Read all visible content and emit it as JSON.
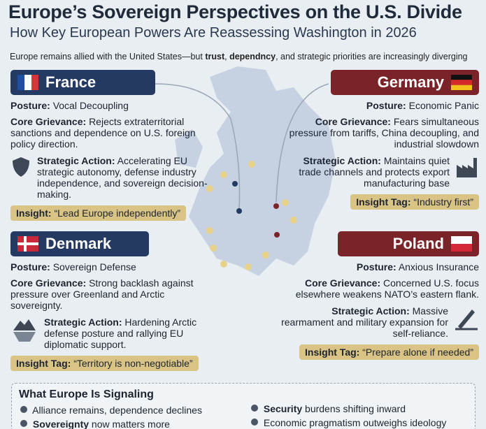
{
  "header": {
    "title": "Europe’s Sovereign Perspectives on the U.S. Divide",
    "subtitle": "How Key European Powers Are Reassessing Washington in 2026",
    "intro": [
      "Europe remains allied with the United States—but ",
      "trust",
      ", ",
      "dependncy",
      ", and strategic priorities are increasingly diverging"
    ]
  },
  "countries": [
    {
      "name": "France",
      "posture": {
        "label": "Posture:",
        "text": "Vocal Decoupling"
      },
      "grievance": {
        "label": "Core Grievance:",
        "text": "Rejects extraterritorial sanctions and dependence on U.S. foreign policy direction."
      },
      "action": {
        "label": "Strategic Action:",
        "text": "Accelerating EU strategic autonomy, defense industry independence, and sovereign decision-making."
      },
      "insight": {
        "label": "Insight:",
        "text": "“Lead Europe independently”"
      }
    },
    {
      "name": "Germany",
      "posture": {
        "label": "Posture:",
        "text": "Economic Panic"
      },
      "grievance": {
        "label": "Core Grievance:",
        "text": "Fears simultaneous pressure from tariffs, China decoupling, and industrial slowdown"
      },
      "action": {
        "label": "Strategic Action:",
        "text": "Maintains quiet trade channels and protects export manufacturing base"
      },
      "insight": {
        "label": "Insight Tag:",
        "text": "“Industry first”"
      }
    },
    {
      "name": "Denmark",
      "posture": {
        "label": "Posture:",
        "text": "Sovereign Defense"
      },
      "grievance": {
        "label": "Core Grievance:",
        "text": "Strong backlash against pressure over Greenland and Arctic sovereignty."
      },
      "action": {
        "label": "Strategic Action:",
        "text": "Hardening Arctic defense posture and rallying EU diplomatic support."
      },
      "insight": {
        "label": "Insight Tag:",
        "text": "“Territory is non-negotiable”"
      }
    },
    {
      "name": "Poland",
      "posture": {
        "label": "Posture:",
        "text": "Anxious Insurance"
      },
      "grievance": {
        "label": "Core Grievance:",
        "text": "Concerned U.S. focus elsewhere weakens NATO’s eastern flank."
      },
      "action": {
        "label": "Strategic Action:",
        "text": "Massive rearmament and military expansion for self-reliance."
      },
      "insight": {
        "label": "Insight Tag:",
        "text": "“Prepare alone if needed”"
      }
    }
  ],
  "signals": {
    "title": "What Europe Is Signaling",
    "items": [
      {
        "text": "Alliance remains, dependence declines"
      },
      {
        "bold": "Sovereignty",
        "text": " now matters more"
      },
      {
        "bold": "Security",
        "text": " burdens shifting inward"
      },
      {
        "text": "Economic pragmatism outweighs ideology"
      }
    ]
  }
}
